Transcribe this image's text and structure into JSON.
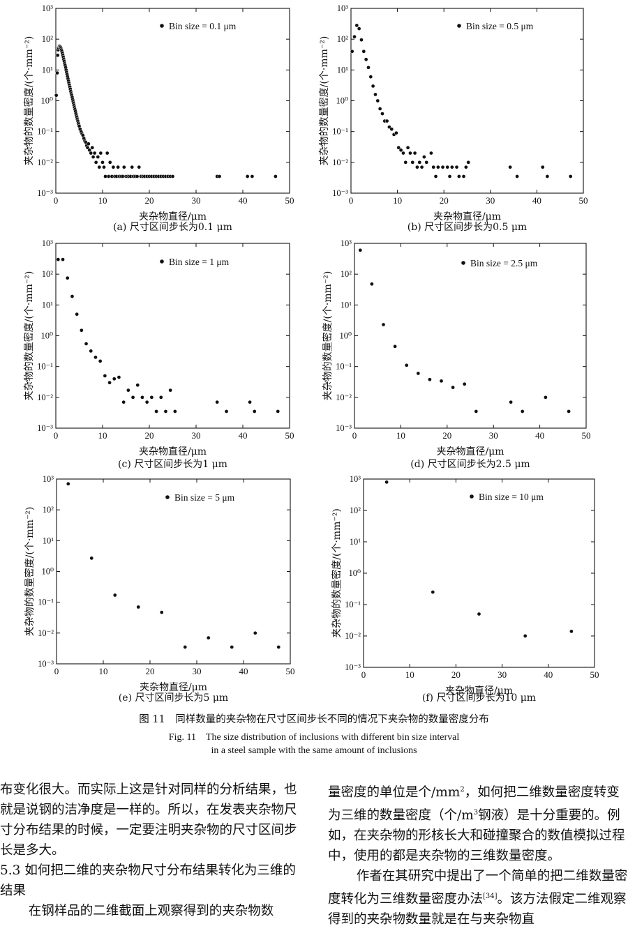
{
  "figure": {
    "caption_cn": "图 11　同样数量的夹杂物在尺寸区间步长不同的情况下夹杂物的数量密度分布",
    "caption_en_1": "Fig. 11　The size distribution of inclusions with different bin size interval",
    "caption_en_2": "in a steel sample with the same amount of inclusions"
  },
  "chart_data": [
    {
      "type": "scatter",
      "subcaption": "(a) 尺寸区间步长为0.1 μm",
      "legend": "Bin size = 0.1 μm",
      "xlabel": "夹杂物直径/μm",
      "ylabel": "夹杂物的数量密度/(个·mm⁻²)",
      "xlim": [
        0,
        50
      ],
      "ylim": [
        0.001,
        1000
      ],
      "yscale": "log",
      "xticks": [
        "0",
        "10",
        "20",
        "30",
        "40",
        "50"
      ],
      "yticks": [
        "10⁻³",
        "10⁻²",
        "10⁻¹",
        "10⁰",
        "10¹",
        "10²",
        "10³"
      ],
      "points": [
        [
          0.1,
          1.5
        ],
        [
          0.3,
          8
        ],
        [
          0.4,
          30
        ],
        [
          0.5,
          45
        ],
        [
          0.6,
          52
        ],
        [
          0.7,
          58
        ],
        [
          0.8,
          60
        ],
        [
          0.9,
          58
        ],
        [
          1.0,
          55
        ],
        [
          1.1,
          50
        ],
        [
          1.2,
          45
        ],
        [
          1.3,
          40
        ],
        [
          1.4,
          35
        ],
        [
          1.5,
          30
        ],
        [
          1.6,
          26
        ],
        [
          1.7,
          22
        ],
        [
          1.8,
          19
        ],
        [
          1.9,
          16
        ],
        [
          2.0,
          14
        ],
        [
          2.1,
          12
        ],
        [
          2.2,
          10
        ],
        [
          2.3,
          8.5
        ],
        [
          2.4,
          7.2
        ],
        [
          2.5,
          6.1
        ],
        [
          2.6,
          5.2
        ],
        [
          2.7,
          4.4
        ],
        [
          2.8,
          3.8
        ],
        [
          2.9,
          3.2
        ],
        [
          3.0,
          2.8
        ],
        [
          3.1,
          2.4
        ],
        [
          3.2,
          2.0
        ],
        [
          3.3,
          1.7
        ],
        [
          3.4,
          1.5
        ],
        [
          3.5,
          1.3
        ],
        [
          3.6,
          1.1
        ],
        [
          3.7,
          0.95
        ],
        [
          3.8,
          0.82
        ],
        [
          3.9,
          0.7
        ],
        [
          4.0,
          0.6
        ],
        [
          4.1,
          0.52
        ],
        [
          4.2,
          0.45
        ],
        [
          4.3,
          0.38
        ],
        [
          4.4,
          0.33
        ],
        [
          4.5,
          0.29
        ],
        [
          4.6,
          0.25
        ],
        [
          4.7,
          0.22
        ],
        [
          4.8,
          0.19
        ],
        [
          4.9,
          0.17
        ],
        [
          5.0,
          0.15
        ],
        [
          5.2,
          0.12
        ],
        [
          5.4,
          0.1
        ],
        [
          5.6,
          0.085
        ],
        [
          5.8,
          0.075
        ],
        [
          6.0,
          0.06
        ],
        [
          6.2,
          0.05
        ],
        [
          6.4,
          0.045
        ],
        [
          6.6,
          0.035
        ],
        [
          6.8,
          0.03
        ],
        [
          7.0,
          0.04
        ],
        [
          7.2,
          0.025
        ],
        [
          7.5,
          0.02
        ],
        [
          7.8,
          0.03
        ],
        [
          8.0,
          0.015
        ],
        [
          8.3,
          0.02
        ],
        [
          8.6,
          0.01
        ],
        [
          9.0,
          0.015
        ],
        [
          9.3,
          0.007
        ],
        [
          9.6,
          0.02
        ],
        [
          10.0,
          0.01
        ],
        [
          10.3,
          0.007
        ],
        [
          10.6,
          0.0035
        ],
        [
          11.0,
          0.02
        ],
        [
          11.3,
          0.0035
        ],
        [
          11.6,
          0.01
        ],
        [
          12.0,
          0.0035
        ],
        [
          12.3,
          0.007
        ],
        [
          12.6,
          0.0035
        ],
        [
          13.0,
          0.0035
        ],
        [
          13.3,
          0.007
        ],
        [
          13.6,
          0.0035
        ],
        [
          14.0,
          0.0035
        ],
        [
          14.3,
          0.0035
        ],
        [
          14.6,
          0.007
        ],
        [
          15.0,
          0.0035
        ],
        [
          15.3,
          0.0035
        ],
        [
          15.6,
          0.0035
        ],
        [
          16.0,
          0.0035
        ],
        [
          16.3,
          0.007
        ],
        [
          16.6,
          0.0035
        ],
        [
          17.0,
          0.0035
        ],
        [
          17.4,
          0.0035
        ],
        [
          17.8,
          0.007
        ],
        [
          18.2,
          0.0035
        ],
        [
          18.6,
          0.0035
        ],
        [
          19.0,
          0.0035
        ],
        [
          19.5,
          0.0035
        ],
        [
          20.0,
          0.0035
        ],
        [
          20.5,
          0.0035
        ],
        [
          21.0,
          0.0035
        ],
        [
          21.5,
          0.0035
        ],
        [
          22.0,
          0.0035
        ],
        [
          22.5,
          0.0035
        ],
        [
          23.0,
          0.0035
        ],
        [
          23.5,
          0.0035
        ],
        [
          24.0,
          0.0035
        ],
        [
          24.5,
          0.0035
        ],
        [
          25.0,
          0.0035
        ],
        [
          34.5,
          0.0035
        ],
        [
          35.0,
          0.0035
        ],
        [
          41.0,
          0.0035
        ],
        [
          42.0,
          0.0035
        ],
        [
          47.0,
          0.0035
        ]
      ]
    },
    {
      "type": "scatter",
      "subcaption": "(b) 尺寸区间步长为0.5 μm",
      "legend": "Bin size = 0.5 μm",
      "xlabel": "夹杂物直径/μm",
      "ylabel": "夹杂物的数量密度/(个·mm⁻²)",
      "xlim": [
        0,
        50
      ],
      "ylim": [
        0.001,
        1000
      ],
      "yscale": "log",
      "xticks": [
        "0",
        "10",
        "20",
        "30",
        "40",
        "50"
      ],
      "yticks": [
        "10⁻³",
        "10⁻²",
        "10⁻¹",
        "10⁰",
        "10¹",
        "10²",
        "10³"
      ],
      "points": [
        [
          0.25,
          40
        ],
        [
          0.75,
          120
        ],
        [
          1.25,
          280
        ],
        [
          1.75,
          220
        ],
        [
          2.25,
          95
        ],
        [
          2.75,
          40
        ],
        [
          3.25,
          22
        ],
        [
          3.75,
          12
        ],
        [
          4.25,
          6
        ],
        [
          4.75,
          3
        ],
        [
          5.25,
          1.6
        ],
        [
          5.75,
          1.0
        ],
        [
          6.25,
          0.55
        ],
        [
          6.75,
          0.38
        ],
        [
          7.25,
          0.22
        ],
        [
          7.75,
          0.22
        ],
        [
          8.25,
          0.14
        ],
        [
          8.75,
          0.12
        ],
        [
          9.25,
          0.08
        ],
        [
          9.75,
          0.09
        ],
        [
          10.25,
          0.03
        ],
        [
          10.75,
          0.025
        ],
        [
          11.25,
          0.02
        ],
        [
          11.75,
          0.01
        ],
        [
          12.25,
          0.03
        ],
        [
          12.75,
          0.02
        ],
        [
          13.25,
          0.01
        ],
        [
          13.75,
          0.02
        ],
        [
          14.25,
          0.007
        ],
        [
          14.75,
          0.01
        ],
        [
          15.25,
          0.007
        ],
        [
          15.75,
          0.015
        ],
        [
          16.25,
          0.01
        ],
        [
          17.25,
          0.02
        ],
        [
          17.75,
          0.007
        ],
        [
          18.25,
          0.0035
        ],
        [
          18.75,
          0.007
        ],
        [
          19.75,
          0.007
        ],
        [
          20.75,
          0.007
        ],
        [
          21.25,
          0.0035
        ],
        [
          21.75,
          0.007
        ],
        [
          22.75,
          0.007
        ],
        [
          23.25,
          0.0035
        ],
        [
          24.25,
          0.0035
        ],
        [
          24.75,
          0.007
        ],
        [
          25.25,
          0.01
        ],
        [
          34.25,
          0.007
        ],
        [
          35.75,
          0.0035
        ],
        [
          41.25,
          0.007
        ],
        [
          42.25,
          0.0035
        ],
        [
          47.25,
          0.0035
        ]
      ]
    },
    {
      "type": "scatter",
      "subcaption": "(c) 尺寸区间步长为1 μm",
      "legend": "Bin size = 1 μm",
      "xlabel": "夹杂物直径/μm",
      "ylabel": "夹杂物的数量密度/(个·mm⁻²)",
      "xlim": [
        0,
        50
      ],
      "ylim": [
        0.001,
        1000
      ],
      "yscale": "log",
      "xticks": [
        "0",
        "10",
        "20",
        "30",
        "40",
        "50"
      ],
      "yticks": [
        "10⁻³",
        "10⁻²",
        "10⁻¹",
        "10⁰",
        "10¹",
        "10²",
        "10³"
      ],
      "points": [
        [
          0.5,
          300
        ],
        [
          1.5,
          300
        ],
        [
          2.5,
          75
        ],
        [
          3.5,
          19
        ],
        [
          4.5,
          5
        ],
        [
          5.5,
          1.5
        ],
        [
          6.5,
          0.55
        ],
        [
          7.5,
          0.32
        ],
        [
          8.5,
          0.2
        ],
        [
          9.5,
          0.15
        ],
        [
          10.5,
          0.05
        ],
        [
          11.5,
          0.03
        ],
        [
          12.5,
          0.04
        ],
        [
          13.5,
          0.045
        ],
        [
          14.5,
          0.007
        ],
        [
          15.5,
          0.017
        ],
        [
          16.5,
          0.01
        ],
        [
          17.5,
          0.025
        ],
        [
          18.5,
          0.01
        ],
        [
          19.5,
          0.007
        ],
        [
          20.5,
          0.01
        ],
        [
          21.5,
          0.0035
        ],
        [
          22.5,
          0.01
        ],
        [
          23.5,
          0.0035
        ],
        [
          24.5,
          0.017
        ],
        [
          25.5,
          0.0035
        ],
        [
          34.5,
          0.007
        ],
        [
          36.5,
          0.0035
        ],
        [
          41.5,
          0.007
        ],
        [
          42.5,
          0.0035
        ],
        [
          47.5,
          0.0035
        ]
      ]
    },
    {
      "type": "scatter",
      "subcaption": "(d) 尺寸区间步长为2.5 μm",
      "legend": "Bin size = 2.5 μm",
      "xlabel": "夹杂物直径/μm",
      "ylabel": "夹杂物的数量密度/(个·mm⁻²)",
      "xlim": [
        0,
        50
      ],
      "ylim": [
        0.001,
        1000
      ],
      "yscale": "log",
      "xticks": [
        "0",
        "10",
        "20",
        "30",
        "40",
        "50"
      ],
      "yticks": [
        "10⁻³",
        "10⁻²",
        "10⁻¹",
        "10⁰",
        "10¹",
        "10²",
        "10³"
      ],
      "points": [
        [
          1.25,
          600
        ],
        [
          3.75,
          48
        ],
        [
          6.25,
          2.3
        ],
        [
          8.75,
          0.45
        ],
        [
          11.25,
          0.11
        ],
        [
          13.75,
          0.06
        ],
        [
          16.25,
          0.038
        ],
        [
          18.75,
          0.034
        ],
        [
          21.25,
          0.021
        ],
        [
          23.75,
          0.027
        ],
        [
          26.25,
          0.0035
        ],
        [
          33.75,
          0.007
        ],
        [
          36.25,
          0.0035
        ],
        [
          41.25,
          0.01
        ],
        [
          46.25,
          0.0035
        ]
      ]
    },
    {
      "type": "scatter",
      "subcaption": "(e) 尺寸区间步长为5 μm",
      "legend": "Bin size = 5 μm",
      "xlabel": "夹杂物直径/μm",
      "ylabel": "夹杂物的数量密度/(个·mm⁻²)",
      "xlim": [
        0,
        50
      ],
      "ylim": [
        0.001,
        1000
      ],
      "yscale": "log",
      "xticks": [
        "0",
        "10",
        "20",
        "30",
        "40",
        "50"
      ],
      "yticks": [
        "10⁻³",
        "10⁻²",
        "10⁻¹",
        "10⁰",
        "10¹",
        "10²",
        "10³"
      ],
      "points": [
        [
          2.5,
          700
        ],
        [
          7.5,
          2.7
        ],
        [
          12.5,
          0.17
        ],
        [
          17.5,
          0.07
        ],
        [
          22.5,
          0.047
        ],
        [
          27.5,
          0.0035
        ],
        [
          32.5,
          0.007
        ],
        [
          37.5,
          0.0035
        ],
        [
          42.5,
          0.01
        ],
        [
          47.5,
          0.0035
        ]
      ]
    },
    {
      "type": "scatter",
      "subcaption": "(f) 尺寸区间步长为10 μm",
      "legend": "Bin size = 10 μm",
      "xlabel": "夹杂物直径/μm",
      "ylabel": "夹杂物的数量密度/(个·mm⁻²)",
      "xlim": [
        0,
        50
      ],
      "ylim": [
        0.001,
        1000
      ],
      "yscale": "log",
      "xticks": [
        "0",
        "10",
        "20",
        "30",
        "40",
        "50"
      ],
      "yticks": [
        "10⁻³",
        "10⁻²",
        "10⁻¹",
        "10⁰",
        "10¹",
        "10²",
        "10³"
      ],
      "points": [
        [
          5,
          800
        ],
        [
          15,
          0.25
        ],
        [
          25,
          0.05
        ],
        [
          35,
          0.01
        ],
        [
          45,
          0.014
        ]
      ]
    }
  ],
  "text": {
    "left_p1": "布变化很大。而实际上这是针对同样的分析结果，也就是说钢的洁净度是一样的。所以，在发表夹杂物尺寸分布结果的时候，一定要注明夹杂物的尺寸区间步长是多大。",
    "left_heading_num": "5.3",
    "left_heading": "如何把二维的夹杂物尺寸分布结果转化为三维的结果",
    "left_p2": "在钢样品的二维截面上观察得到的夹杂物数",
    "right_p1a": "量密度的单位是个/mm",
    "right_p1a_sup": "2",
    "right_p1b": "，如何把二维数量密度转变为三维的数量密度（个/m",
    "right_p1b_sup": "3",
    "right_p1c": "钢液）是十分重要的。例如，在夹杂物的形核长大和碰撞聚合的数值模拟过程中，使用的都是夹杂物的三维数量密度。",
    "right_p2a": "作者在其研究中提出了一个简单的把二维数量密度转化为三维数量密度办法",
    "right_p2_ref": "[34]",
    "right_p2b": "。该方法假定二维观察得到的夹杂物数量就是在与夹杂物直"
  }
}
